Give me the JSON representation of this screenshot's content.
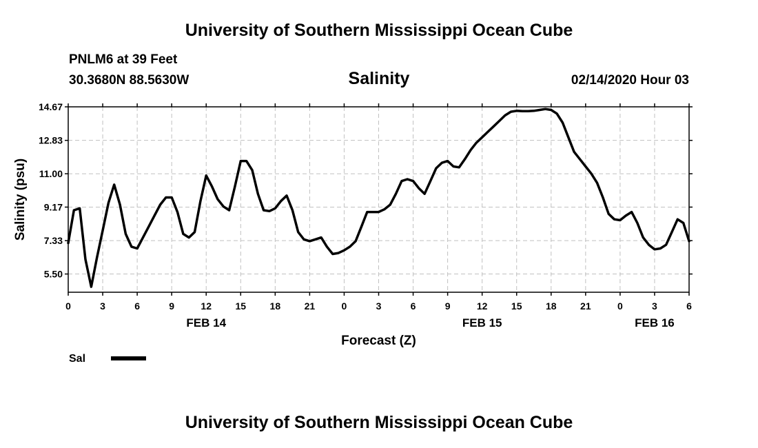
{
  "header": {
    "title": "University of Southern Mississippi Ocean Cube",
    "station": "PNLM6 at 39 Feet",
    "coords": "30.3680N 88.5630W",
    "run_time": "02/14/2020 Hour 03"
  },
  "footer": {
    "title": "University of Southern Mississippi Ocean Cube"
  },
  "colors": {
    "line": "#000000",
    "grid": "#c0c0c0",
    "axis": "#000000"
  },
  "chart_data": {
    "type": "line",
    "title": "Salinity",
    "xlabel": "Forecast (Z)",
    "ylabel": "Salinity (psu)",
    "ylim": [
      4.5,
      14.67
    ],
    "xlim": [
      0,
      54
    ],
    "yticks": [
      "14.67",
      "12.83",
      "11.00",
      "9.17",
      "7.33",
      "5.50"
    ],
    "xtick_labels": [
      "0",
      "3",
      "6",
      "9",
      "12",
      "15",
      "18",
      "21",
      "0",
      "3",
      "6",
      "9",
      "12",
      "15",
      "18",
      "21",
      "0",
      "3",
      "6"
    ],
    "day_labels": [
      {
        "text": "FEB 14",
        "at_hour": 12
      },
      {
        "text": "FEB 15",
        "at_hour": 36
      },
      {
        "text": "FEB 16",
        "at_hour": 51
      }
    ],
    "legend": [
      {
        "name": "Sal",
        "position": "bottom-left"
      }
    ],
    "series": [
      {
        "name": "Sal",
        "x": [
          0,
          0.5,
          1,
          1.5,
          2,
          2.5,
          3,
          3.5,
          4,
          4.5,
          5,
          5.5,
          6,
          6.5,
          7,
          7.5,
          8,
          8.5,
          9,
          9.5,
          10,
          10.5,
          11,
          11.5,
          12,
          12.5,
          13,
          13.5,
          14,
          14.5,
          15,
          15.5,
          16,
          16.5,
          17,
          17.5,
          18,
          18.5,
          19,
          19.5,
          20,
          20.5,
          21,
          21.5,
          22,
          22.5,
          23,
          23.5,
          24,
          24.5,
          25,
          25.5,
          26,
          26.5,
          27,
          27.5,
          28,
          28.5,
          29,
          29.5,
          30,
          30.5,
          31,
          31.5,
          32,
          32.5,
          33,
          33.5,
          34,
          34.5,
          35,
          35.5,
          36,
          36.5,
          37,
          37.5,
          38,
          38.5,
          39,
          39.5,
          40,
          40.5,
          41,
          41.5,
          42,
          42.5,
          43,
          43.5,
          44,
          44.5,
          45,
          45.5,
          46,
          46.5,
          47,
          47.5,
          48,
          48.5,
          49,
          49.5,
          50,
          50.5,
          51,
          51.5,
          52,
          52.5,
          53,
          53.5,
          54
        ],
        "values": [
          7.2,
          9.0,
          9.1,
          6.3,
          4.8,
          6.4,
          7.9,
          9.4,
          10.4,
          9.3,
          7.7,
          7.0,
          6.9,
          7.5,
          8.1,
          8.7,
          9.3,
          9.7,
          9.7,
          8.9,
          7.7,
          7.5,
          7.8,
          9.5,
          10.9,
          10.3,
          9.6,
          9.2,
          9.0,
          10.3,
          11.7,
          11.7,
          11.2,
          9.9,
          9.0,
          8.95,
          9.1,
          9.5,
          9.8,
          9.0,
          7.8,
          7.4,
          7.3,
          7.4,
          7.5,
          7.0,
          6.6,
          6.65,
          6.8,
          7.0,
          7.3,
          8.1,
          8.9,
          8.9,
          8.9,
          9.05,
          9.3,
          9.9,
          10.6,
          10.7,
          10.6,
          10.2,
          9.9,
          10.6,
          11.3,
          11.6,
          11.7,
          11.4,
          11.35,
          11.8,
          12.3,
          12.7,
          13.0,
          13.3,
          13.6,
          13.9,
          14.2,
          14.4,
          14.45,
          14.43,
          14.43,
          14.45,
          14.5,
          14.55,
          14.5,
          14.3,
          13.8,
          13.0,
          12.2,
          11.8,
          11.4,
          11.0,
          10.5,
          9.7,
          8.8,
          8.5,
          8.45,
          8.7,
          8.9,
          8.3,
          7.5,
          7.1,
          6.85,
          6.9,
          7.1,
          7.8,
          8.5,
          8.3,
          7.3
        ]
      }
    ]
  }
}
